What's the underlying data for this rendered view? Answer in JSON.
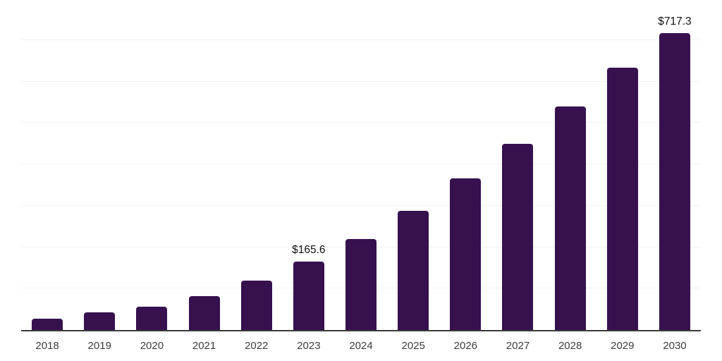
{
  "chart_data": {
    "type": "bar",
    "categories": [
      "2018",
      "2019",
      "2020",
      "2021",
      "2022",
      "2023",
      "2024",
      "2025",
      "2026",
      "2027",
      "2028",
      "2029",
      "2030"
    ],
    "values": [
      28,
      43,
      56,
      82,
      120,
      165.6,
      220,
      287,
      366,
      449,
      540,
      633,
      717.3
    ],
    "value_labels": [
      "",
      "",
      "",
      "",
      "",
      "$165.6",
      "",
      "",
      "",
      "",
      "",
      "",
      "$717.3"
    ],
    "title": "",
    "xlabel": "",
    "ylabel": "",
    "ylim": [
      0,
      800
    ],
    "gridline_step": 100,
    "grid": "horizontal",
    "legend": "none",
    "colors": {
      "bar": "#36114e",
      "gridline": "#f2f2f4",
      "axis_line": "#3a3a3a",
      "tick_label": "#3d3d3d",
      "value_label": "#111111",
      "background": "#ffffff"
    }
  }
}
